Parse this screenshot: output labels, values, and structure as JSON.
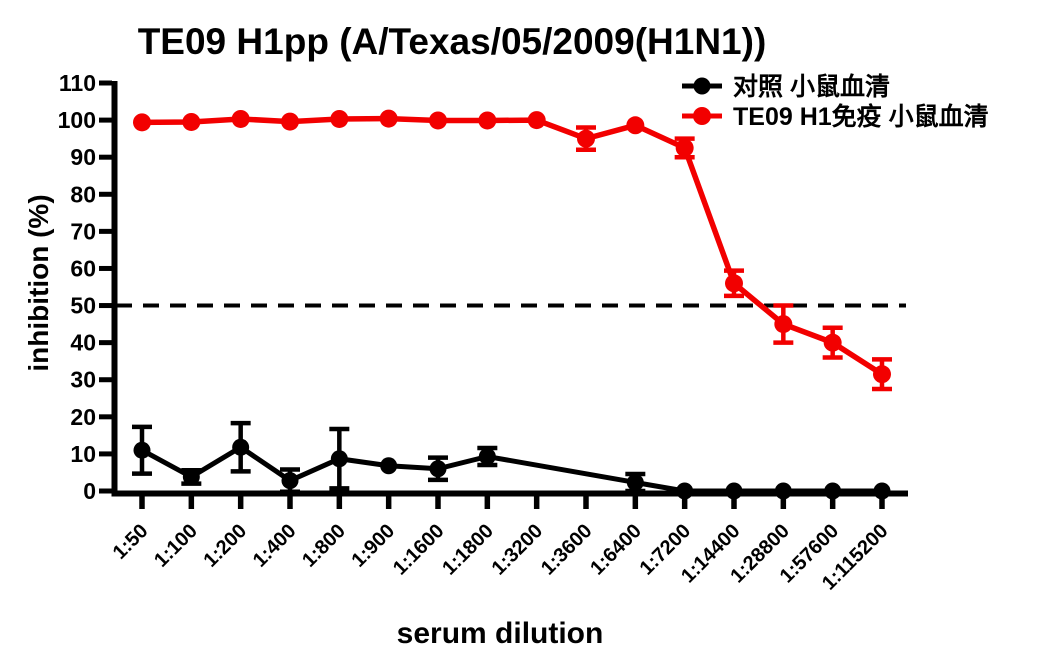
{
  "figure": {
    "background": "#ffffff",
    "accent_red": "#f20000",
    "accent_black": "#000000"
  },
  "chart_data": {
    "type": "line",
    "title": "TE09 H1pp (A/Texas/05/2009(H1N1))",
    "xlabel": "serum dilution",
    "ylabel": "inhibition (%)",
    "ylim": [
      0,
      110
    ],
    "ytick_step": 10,
    "ytick_labels": [
      "0",
      "10",
      "20",
      "30",
      "40",
      "50",
      "60",
      "70",
      "80",
      "90",
      "100",
      "110"
    ],
    "grid": false,
    "reference_line_y": 50,
    "reference_line_style": "dashed",
    "legend_position": "top-right",
    "marker": "circle",
    "error_bars": true,
    "categories": [
      "1:50",
      "1:100",
      "1:200",
      "1:400",
      "1:800",
      "1:900",
      "1:1600",
      "1:1800",
      "1:3200",
      "1:3600",
      "1:6400",
      "1:7200",
      "1:14400",
      "1:28800",
      "1:57600",
      "1:115200"
    ],
    "series": [
      {
        "name": "对照 小鼠血清",
        "color": "#000000",
        "values": [
          11,
          3.8,
          11.8,
          2.8,
          8.7,
          6.8,
          6,
          9.3,
          null,
          null,
          2.3,
          0,
          0,
          0,
          0,
          0
        ],
        "errors": [
          6.3,
          1.8,
          6.5,
          3,
          8,
          0,
          3,
          2.3,
          null,
          null,
          2.3,
          0,
          0,
          0,
          0,
          0
        ]
      },
      {
        "name": "TE09 H1免疫 小鼠血清",
        "color": "#f20000",
        "values": [
          99.4,
          99.5,
          100.3,
          99.6,
          100.3,
          100.4,
          99.9,
          99.9,
          100,
          95,
          98.6,
          92.5,
          56,
          45,
          40,
          31.5
        ],
        "errors": [
          0,
          0,
          0,
          0,
          0,
          0,
          0,
          0,
          0,
          3,
          0,
          2.5,
          3.4,
          5,
          4,
          4
        ]
      }
    ]
  }
}
